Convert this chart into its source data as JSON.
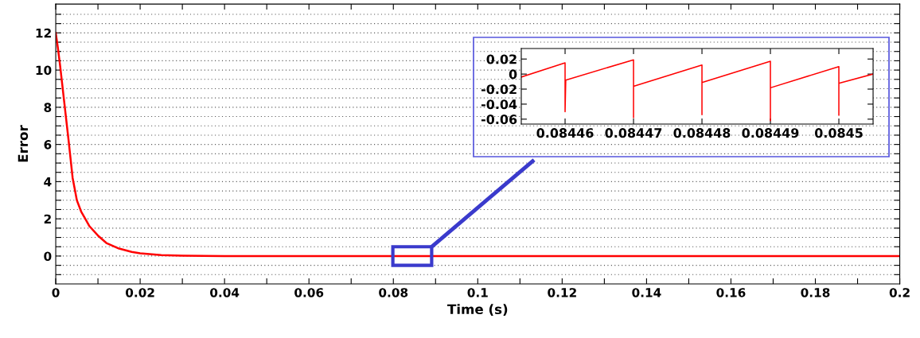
{
  "chart_data": [
    {
      "type": "line",
      "xlabel": "Time (s)",
      "ylabel": "Error",
      "xlim": [
        0,
        0.2
      ],
      "ylim": [
        -1.5,
        13.55
      ],
      "xticks": [
        0,
        {
          "value": 0.01,
          "label": null
        },
        0.02,
        {
          "value": 0.03,
          "label": null
        },
        0.04,
        {
          "value": 0.05,
          "label": null
        },
        0.06,
        {
          "value": 0.07,
          "label": null
        },
        0.08,
        {
          "value": 0.09,
          "label": null
        },
        0.1,
        {
          "value": 0.11,
          "label": null
        },
        0.12,
        {
          "value": 0.13,
          "label": null
        },
        0.14,
        {
          "value": 0.15,
          "label": null
        },
        0.16,
        {
          "value": 0.17,
          "label": null
        },
        0.18,
        {
          "value": 0.19,
          "label": null
        },
        0.2
      ],
      "yticks": [
        {
          "value": -1,
          "label": null
        },
        {
          "value": -0.5,
          "label": null
        },
        0,
        {
          "value": 0.5,
          "label": null
        },
        {
          "value": 1,
          "label": null
        },
        {
          "value": 1.5,
          "label": null
        },
        2,
        {
          "value": 2.5,
          "label": null
        },
        {
          "value": 3,
          "label": null
        },
        {
          "value": 3.5,
          "label": null
        },
        4,
        {
          "value": 4.5,
          "label": null
        },
        {
          "value": 5,
          "label": null
        },
        {
          "value": 5.5,
          "label": null
        },
        6,
        {
          "value": 6.5,
          "label": null
        },
        {
          "value": 7,
          "label": null
        },
        {
          "value": 7.5,
          "label": null
        },
        8,
        {
          "value": 8.5,
          "label": null
        },
        {
          "value": 9,
          "label": null
        },
        {
          "value": 9.5,
          "label": null
        },
        10,
        {
          "value": 10.5,
          "label": null
        },
        {
          "value": 11,
          "label": null
        },
        {
          "value": 11.5,
          "label": null
        },
        12,
        {
          "value": 12.5,
          "label": null
        },
        {
          "value": 13,
          "label": null
        }
      ],
      "grid": "y",
      "x": [
        0,
        0.0005,
        0.001,
        0.0015,
        0.002,
        0.003,
        0.004,
        0.005,
        0.006,
        0.007,
        0.008,
        0.01,
        0.012,
        0.015,
        0.018,
        0.02,
        0.025,
        0.03,
        0.04,
        0.2
      ],
      "series": [
        {
          "color": "#ff0000",
          "values": [
            12,
            11.2,
            10.3,
            9.3,
            8.3,
            6.3,
            4.2,
            3.0,
            2.4,
            2.0,
            1.6,
            1.1,
            0.7,
            0.4,
            0.22,
            0.15,
            0.05,
            0.02,
            0,
            0
          ]
        }
      ]
    },
    {
      "type": "line",
      "xlim": [
        0.0844536,
        0.084505
      ],
      "ylim": [
        -0.0665,
        0.034
      ],
      "xticks": [
        0.08446,
        0.08447,
        0.08448,
        0.08449,
        0.0845
      ],
      "yticks": [
        -0.06,
        -0.04,
        -0.02,
        0,
        0.02
      ],
      "x": [
        0.0844536,
        0.08446,
        0.08446,
        0.08446,
        0.0844601,
        0.08447,
        0.08447,
        0.08447,
        0.0844701,
        0.08448,
        0.08448,
        0.08448,
        0.0844801,
        0.08449,
        0.08449,
        0.08449,
        0.0844901,
        0.0845,
        0.0845,
        0.0845,
        0.0845001,
        0.084505
      ],
      "series": [
        {
          "color": "#ff0000",
          "values": [
            -0.004,
            0.015,
            0.0,
            -0.05,
            -0.008,
            0.019,
            -0.058,
            -0.016,
            -0.016,
            0.012,
            -0.054,
            -0.011,
            -0.011,
            0.017,
            -0.062,
            -0.018,
            -0.018,
            0.01,
            -0.055,
            -0.012,
            -0.012,
            0.0
          ]
        }
      ]
    }
  ]
}
